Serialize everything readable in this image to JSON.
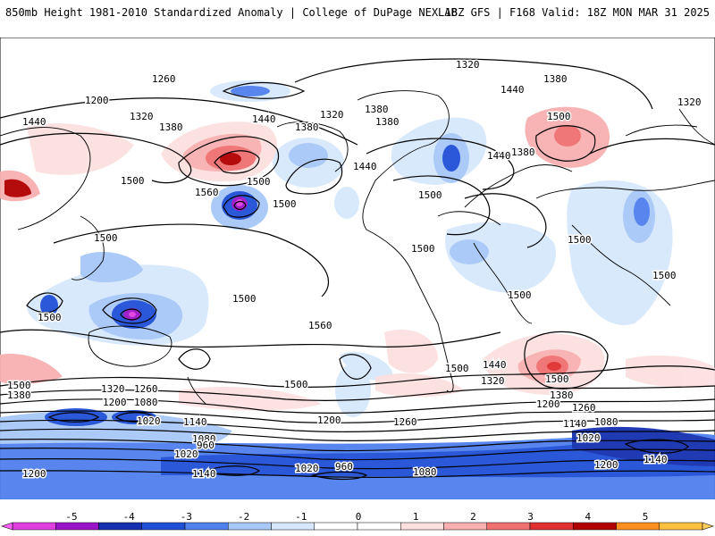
{
  "header": {
    "title": "850mb Height 1981-2010 Standardized Anomaly | College of DuPage NEXLAB",
    "run_info": "18Z GFS | F168 Valid: 18Z MON MAR 31 2025"
  },
  "map": {
    "projection": "global cylindrical",
    "background": "#ffffff",
    "coastline_color": "#000000",
    "contour_color": "#000000",
    "height_contour_labels": [
      "1320",
      "1380",
      "1440",
      "1260",
      "1200",
      "1320",
      "1440",
      "1380",
      "1500",
      "1440",
      "1560",
      "1500",
      "1500",
      "1440",
      "1380",
      "1320",
      "1380",
      "1380",
      "1440",
      "1500",
      "1380",
      "1500",
      "1500",
      "1320",
      "1500",
      "1500",
      "1500",
      "1500",
      "1500",
      "1560",
      "1500",
      "1500",
      "1500",
      "1500",
      "1440",
      "1380",
      "1320",
      "1260",
      "1200",
      "1140",
      "1080",
      "1020",
      "960",
      "1500",
      "1380",
      "1320",
      "1260",
      "1200",
      "1080",
      "1020",
      "1140",
      "1080",
      "1020",
      "1200",
      "1260",
      "1200",
      "1140",
      "1080",
      "1020",
      "960",
      "1200",
      "1140"
    ]
  },
  "colorbar": {
    "ticks": [
      "-5",
      "-4",
      "-3",
      "-2",
      "-1",
      "0",
      "1",
      "2",
      "3",
      "4",
      "5"
    ],
    "bins": [
      {
        "color": "#e040e0"
      },
      {
        "color": "#9b15c8"
      },
      {
        "color": "#1530b0"
      },
      {
        "color": "#2050d8"
      },
      {
        "color": "#5080ee"
      },
      {
        "color": "#a8c8f8"
      },
      {
        "color": "#d8e8fc"
      },
      {
        "color": "#ffffff"
      },
      {
        "color": "#ffffff"
      },
      {
        "color": "#fce0e0"
      },
      {
        "color": "#f8b0b0"
      },
      {
        "color": "#f07070"
      },
      {
        "color": "#e03030"
      },
      {
        "color": "#b00000"
      },
      {
        "color": "#ff9020"
      },
      {
        "color": "#ffc040"
      }
    ]
  }
}
